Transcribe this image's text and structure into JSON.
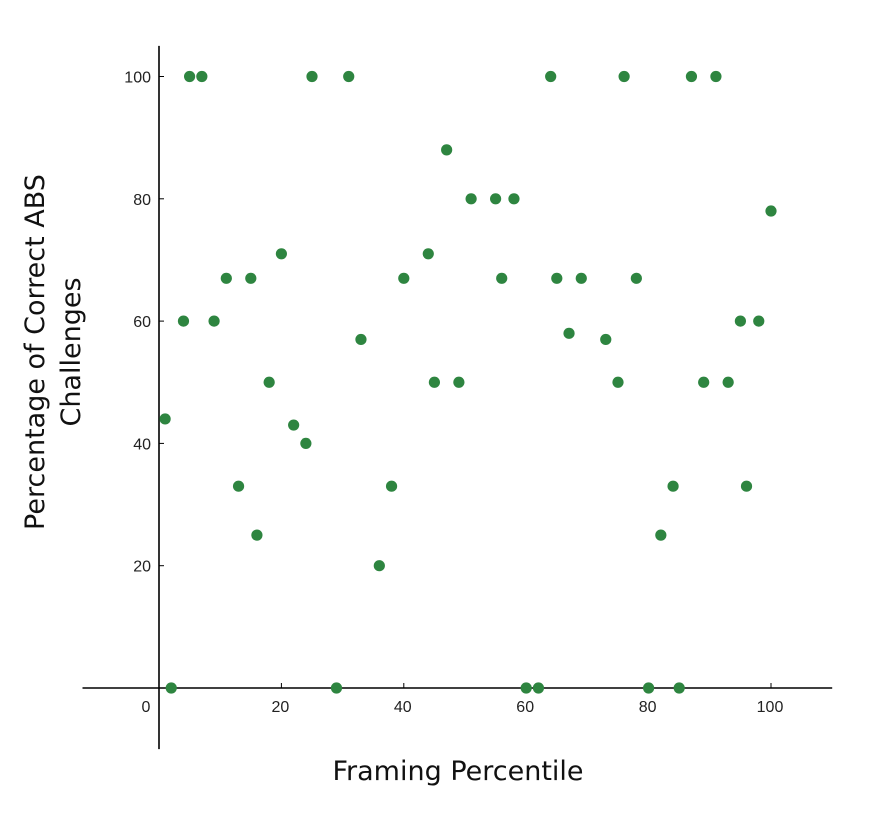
{
  "chart_data": {
    "type": "scatter",
    "title": "",
    "xlabel": "Framing Percentile",
    "ylabel_lines": [
      "Percentage of Correct ABS",
      "Challenges"
    ],
    "xlim": [
      -12.5,
      110
    ],
    "ylim": [
      -10,
      105
    ],
    "x_ticks": [
      0,
      20,
      40,
      60,
      80,
      100
    ],
    "y_ticks": [
      20,
      40,
      60,
      80,
      100
    ],
    "x_tick_labels": [
      "0",
      "20",
      "40",
      "60",
      "80",
      "100"
    ],
    "y_tick_labels": [
      "20",
      "40",
      "60",
      "80",
      "100"
    ],
    "grid": false,
    "marker_color": "#2e8540",
    "points": [
      {
        "x": 1,
        "y": 44
      },
      {
        "x": 2,
        "y": 0
      },
      {
        "x": 4,
        "y": 60
      },
      {
        "x": 5,
        "y": 100
      },
      {
        "x": 7,
        "y": 100
      },
      {
        "x": 9,
        "y": 60
      },
      {
        "x": 11,
        "y": 67
      },
      {
        "x": 13,
        "y": 33
      },
      {
        "x": 15,
        "y": 67
      },
      {
        "x": 16,
        "y": 25
      },
      {
        "x": 18,
        "y": 50
      },
      {
        "x": 20,
        "y": 71
      },
      {
        "x": 22,
        "y": 43
      },
      {
        "x": 24,
        "y": 40
      },
      {
        "x": 25,
        "y": 100
      },
      {
        "x": 29,
        "y": 0
      },
      {
        "x": 31,
        "y": 100
      },
      {
        "x": 33,
        "y": 57
      },
      {
        "x": 36,
        "y": 20
      },
      {
        "x": 38,
        "y": 33
      },
      {
        "x": 40,
        "y": 67
      },
      {
        "x": 44,
        "y": 71
      },
      {
        "x": 45,
        "y": 50
      },
      {
        "x": 47,
        "y": 88
      },
      {
        "x": 49,
        "y": 50
      },
      {
        "x": 51,
        "y": 80
      },
      {
        "x": 55,
        "y": 80
      },
      {
        "x": 56,
        "y": 67
      },
      {
        "x": 58,
        "y": 80
      },
      {
        "x": 60,
        "y": 0
      },
      {
        "x": 62,
        "y": 0
      },
      {
        "x": 64,
        "y": 100
      },
      {
        "x": 65,
        "y": 67
      },
      {
        "x": 67,
        "y": 58
      },
      {
        "x": 69,
        "y": 67
      },
      {
        "x": 73,
        "y": 57
      },
      {
        "x": 75,
        "y": 50
      },
      {
        "x": 76,
        "y": 100
      },
      {
        "x": 78,
        "y": 67
      },
      {
        "x": 80,
        "y": 0
      },
      {
        "x": 82,
        "y": 25
      },
      {
        "x": 84,
        "y": 33
      },
      {
        "x": 85,
        "y": 0
      },
      {
        "x": 87,
        "y": 100
      },
      {
        "x": 89,
        "y": 50
      },
      {
        "x": 91,
        "y": 100
      },
      {
        "x": 93,
        "y": 50
      },
      {
        "x": 95,
        "y": 60
      },
      {
        "x": 96,
        "y": 33
      },
      {
        "x": 98,
        "y": 60
      },
      {
        "x": 100,
        "y": 78
      }
    ]
  }
}
